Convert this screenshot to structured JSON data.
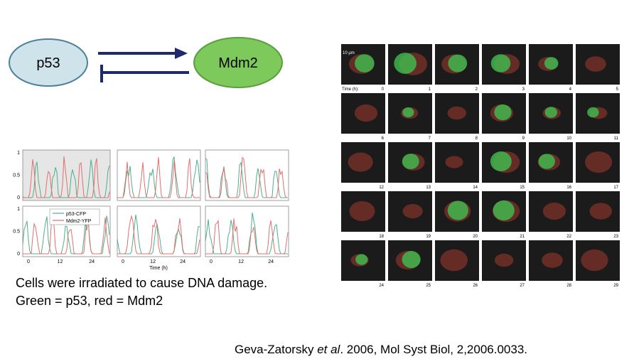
{
  "diagram": {
    "nodes": [
      "p53",
      "Mdm2"
    ]
  },
  "plots": {
    "y_ticks": [
      "1",
      "0.5",
      "0"
    ],
    "x_ticks": [
      "0",
      "12",
      "24"
    ],
    "x_label": "Time (h)",
    "legend": [
      "p53-CFP",
      "Mdm2-YFP"
    ]
  },
  "micrographs": {
    "scale_bar": "10 µm",
    "time_label": "Time (h):",
    "frames": [
      0,
      1,
      2,
      3,
      4,
      5,
      6,
      7,
      8,
      9,
      10,
      11,
      12,
      13,
      14,
      15,
      16,
      17,
      18,
      19,
      20,
      21,
      22,
      23,
      24,
      25,
      26,
      27,
      28,
      29
    ]
  },
  "caption": [
    "Cells were irradiated to cause DNA damage.",
    "Green = p53, red = Mdm2"
  ],
  "citation": {
    "authors": "Geva-Zatorsky ",
    "etal": "et al",
    "rest": ". 2006, Mol Syst Biol, 2,2006.0033."
  }
}
